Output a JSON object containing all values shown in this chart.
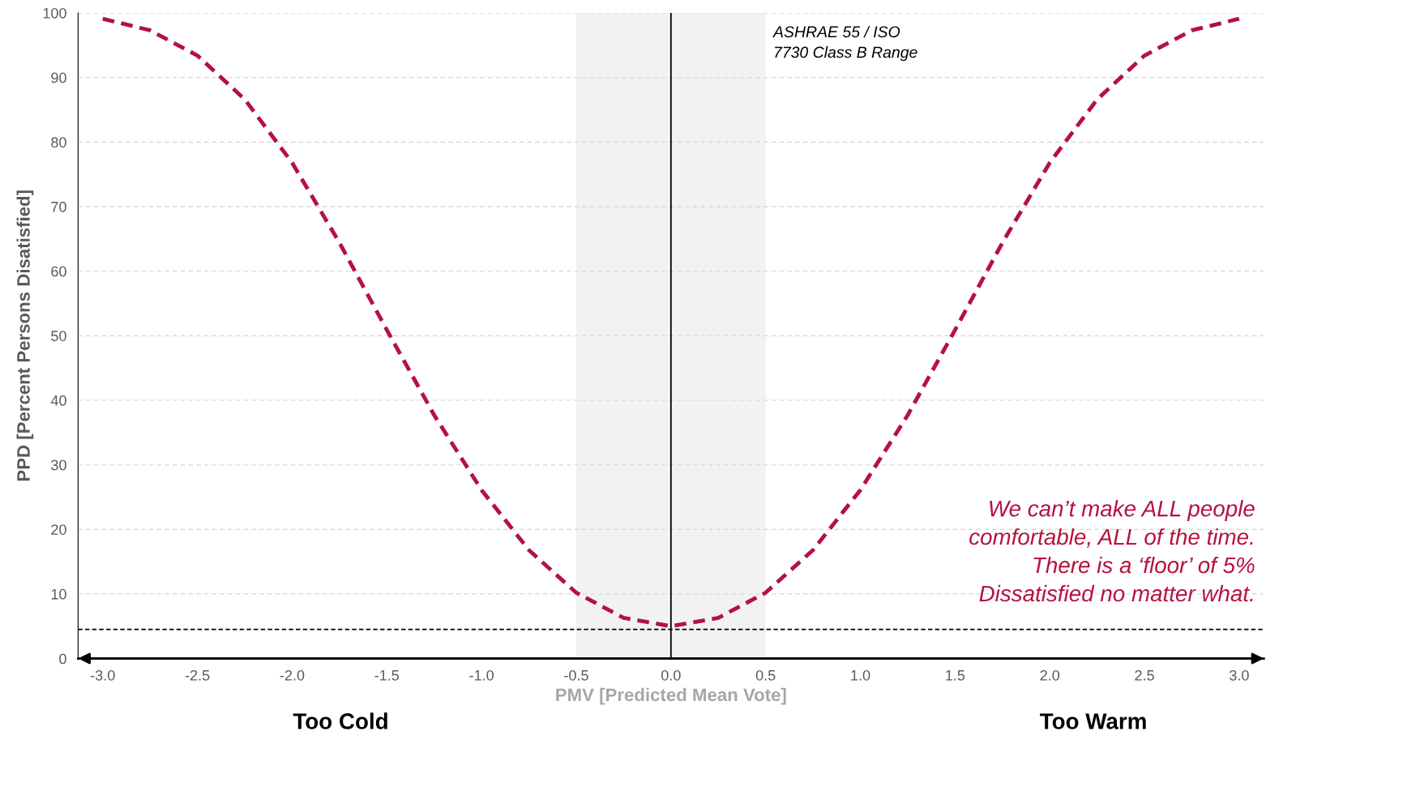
{
  "chart_data": {
    "type": "line",
    "xlabel": "PMV [Predicted Mean Vote]",
    "ylabel": "PPD [Percent Persons Disatisfied]",
    "x": [
      -3.0,
      -2.75,
      -2.5,
      -2.25,
      -2.0,
      -1.75,
      -1.5,
      -1.25,
      -1.0,
      -0.75,
      -0.5,
      -0.25,
      0.0,
      0.25,
      0.5,
      0.75,
      1.0,
      1.25,
      1.5,
      1.75,
      2.0,
      2.25,
      2.5,
      2.75,
      3.0
    ],
    "series": [
      {
        "color": "#b5123f",
        "values": [
          99.1,
          97.3,
          93.4,
          86.6,
          76.8,
          64.4,
          50.9,
          37.7,
          26.1,
          16.8,
          10.2,
          6.3,
          5.0,
          6.3,
          10.2,
          16.8,
          26.1,
          37.7,
          50.9,
          64.4,
          76.8,
          86.6,
          93.4,
          97.3,
          99.1
        ]
      }
    ],
    "line_style": "dashed",
    "marker": "none",
    "xlim": [
      -3.13,
      3.13
    ],
    "ylim": [
      0,
      100
    ],
    "xticks": [
      {
        "value": -3,
        "label": "-3.0"
      },
      {
        "value": -2.5,
        "label": "-2.5"
      },
      {
        "value": -2,
        "label": "-2.0"
      },
      {
        "value": -1.5,
        "label": "-1.5"
      },
      {
        "value": -1,
        "label": "-1.0"
      },
      {
        "value": -0.5,
        "label": "-0.5"
      },
      {
        "value": 0,
        "label": "0.0"
      },
      {
        "value": 0.5,
        "label": "0.5"
      },
      {
        "value": 1,
        "label": "1.0"
      },
      {
        "value": 1.5,
        "label": "1.5"
      },
      {
        "value": 2,
        "label": "2.0"
      },
      {
        "value": 2.5,
        "label": "2.5"
      },
      {
        "value": 3,
        "label": "3.0"
      }
    ],
    "yticks": [
      0,
      10,
      20,
      30,
      40,
      50,
      60,
      70,
      80,
      90,
      100
    ],
    "grid": "y",
    "legend": false,
    "ref_lines": [
      {
        "axis": "y",
        "value": 4.5,
        "color": "#000000",
        "line_style": "dashed"
      },
      {
        "axis": "x",
        "value": 0,
        "color": "#000000",
        "line_style": "solid"
      }
    ],
    "bands": [
      {
        "axis": "x",
        "from": -0.5,
        "to": 0.5,
        "label": "ASHRAE 55 / ISO\n7730 Class B Range",
        "color": "#f2f2f2"
      }
    ],
    "annotations": [
      "Too Cold",
      "Too Warm",
      "We can’t make ALL people\ncomfortable, ALL of the time.\nThere is a ‘floor’ of 5%\nDissatisfied no matter what."
    ]
  }
}
